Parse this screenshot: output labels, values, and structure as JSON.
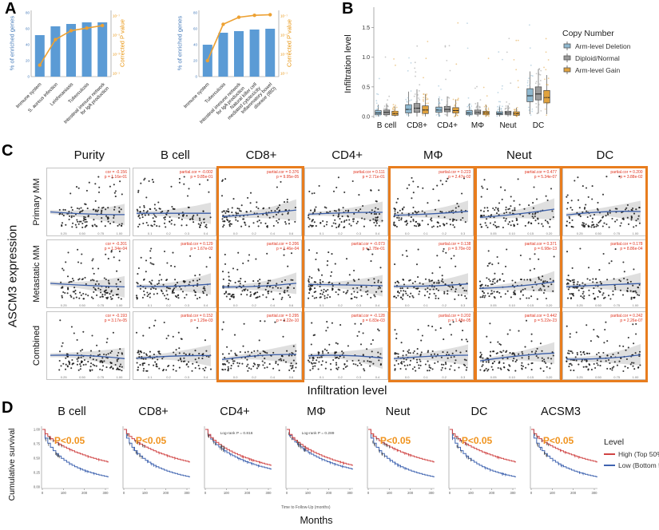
{
  "panel_labels": {
    "A": "A",
    "B": "B",
    "C": "C",
    "D": "D"
  },
  "colors": {
    "bar": "#5b9bd5",
    "line": "#eda133",
    "axis_blue": "#4a7ebb",
    "axis_orange": "#e8940f",
    "scatter_point": "#151515",
    "trend": "#3b5ea8",
    "band": "#bfbfbf",
    "annotation_red": "#e0341f",
    "highlight": "#e87d1e",
    "p_orange": "#f0941f"
  },
  "chart_data": [
    {
      "type": "bar",
      "panel": "A-left",
      "ylabel_left": "% of enriched genes",
      "ylabel_right": "Corrected P value",
      "left_ticks": [
        "0",
        "20",
        "40",
        "60",
        "80"
      ],
      "right_ticks": [
        "10⁻¹",
        "10⁻³",
        "10⁻⁵",
        "10⁻⁷"
      ],
      "categories": [
        "Immune system",
        "S. aureus infection",
        "Leishmaniasis",
        "Tuberculosis",
        "Intestinal immune network\nfor IgA production"
      ],
      "values": [
        52,
        63,
        66,
        68,
        68
      ],
      "line_values": [
        18,
        58,
        72,
        76,
        80
      ],
      "ylim": [
        0,
        80
      ]
    },
    {
      "type": "bar",
      "panel": "A-right",
      "ylabel_left": "% of enriched genes",
      "ylabel_right": "Corrected P value",
      "left_ticks": [
        "0",
        "20",
        "40",
        "60",
        "80"
      ],
      "right_ticks": [
        "10⁻¹",
        "10⁻³",
        "10⁻⁵",
        "10⁻⁷"
      ],
      "categories": [
        "Immune system",
        "Tuberculosis",
        "Intestinal immune network\nfor IgA production",
        "Natural killer cell\nmediated cytotoxicity",
        "Inflammatory bowel\ndisease (IBD)"
      ],
      "values": [
        40,
        55,
        57,
        59,
        60
      ],
      "line_values": [
        25,
        82,
        93,
        96,
        97
      ],
      "ylim": [
        0,
        80
      ]
    },
    {
      "type": "box",
      "panel": "B",
      "ylabel": "Infiltration level",
      "y_ticks": [
        "0.0",
        "0.5",
        "1.0",
        "1.5"
      ],
      "ylim": [
        0,
        1.75
      ],
      "categories": [
        "B cell",
        "CD8+",
        "CD4+",
        "MΦ",
        "Neut",
        "DC"
      ],
      "legend_title": "Copy Number",
      "series": [
        {
          "name": "Arm-level Deletion",
          "color": "#8fb8cf"
        },
        {
          "name": "Diploid/Normal",
          "color": "#9b9b9b"
        },
        {
          "name": "Arm-level Gain",
          "color": "#e0a23e"
        }
      ],
      "boxes": [
        [
          [
            0.03,
            0.06,
            0.1,
            0.0,
            0.2
          ],
          [
            0.03,
            0.07,
            0.11,
            0.0,
            0.22
          ],
          [
            0.02,
            0.05,
            0.09,
            0.0,
            0.17
          ]
        ],
        [
          [
            0.06,
            0.12,
            0.2,
            0.0,
            0.42
          ],
          [
            0.07,
            0.14,
            0.22,
            0.0,
            0.46
          ],
          [
            0.05,
            0.11,
            0.18,
            0.0,
            0.38
          ]
        ],
        [
          [
            0.07,
            0.11,
            0.16,
            0.0,
            0.31
          ],
          [
            0.08,
            0.12,
            0.17,
            0.0,
            0.34
          ],
          [
            0.06,
            0.1,
            0.15,
            0.0,
            0.29
          ]
        ],
        [
          [
            0.03,
            0.06,
            0.1,
            0.0,
            0.22
          ],
          [
            0.04,
            0.07,
            0.11,
            0.0,
            0.24
          ],
          [
            0.03,
            0.06,
            0.09,
            0.0,
            0.2
          ]
        ],
        [
          [
            0.03,
            0.05,
            0.08,
            0.0,
            0.17
          ],
          [
            0.03,
            0.06,
            0.09,
            0.0,
            0.19
          ],
          [
            0.02,
            0.05,
            0.08,
            0.0,
            0.15
          ]
        ],
        [
          [
            0.25,
            0.35,
            0.47,
            0.04,
            0.76
          ],
          [
            0.28,
            0.38,
            0.5,
            0.05,
            0.8
          ],
          [
            0.23,
            0.32,
            0.44,
            0.04,
            0.7
          ]
        ]
      ]
    },
    {
      "type": "scatter",
      "panel": "C",
      "ylabel": "ASCM3 expression",
      "xlabel": "Infiltration level",
      "columns": [
        "Purity",
        "B cell",
        "CD8+",
        "CD4+",
        "MΦ",
        "Neut",
        "DC"
      ],
      "rows": [
        "Primary MM",
        "Metastatic MM",
        "Combined"
      ],
      "highlight_columns": [
        2,
        4,
        5,
        6
      ],
      "x_ticks": [
        [
          "0.25",
          "0.50",
          "0.75",
          "1.00"
        ],
        [
          "0.1",
          "0.2",
          "0.3",
          "0.4"
        ],
        [
          "0.0",
          "0.2",
          "0.4",
          "0.6"
        ],
        [
          "0.1",
          "0.2",
          "0.3",
          "0.4"
        ],
        [
          "0.0",
          "0.1",
          "0.2",
          "0.3"
        ],
        [
          "0.05",
          "0.10",
          "0.15",
          "0.20"
        ],
        [
          "0.25",
          "0.50",
          "0.75",
          "1.00"
        ]
      ],
      "cells": [
        [
          {
            "l1": "cor = -0.156",
            "l2": "p = 1.16e-01"
          },
          {
            "l1": "partial.cor = -0.002",
            "l2": "p = 9.85e-01"
          },
          {
            "l1": "partial.cor = 0.376",
            "l2": "p = 9.95e-05"
          },
          {
            "l1": "partial.cor = 0.111",
            "l2": "p = 2.71e-01"
          },
          {
            "l1": "partial.cor = 0.223",
            "l2": "p = 2.47e-02"
          },
          {
            "l1": "partial.cor = 0.477",
            "l2": "p = 5.34e-07"
          },
          {
            "l1": "partial.cor = 0.200",
            "l2": "p = 3.88e-02"
          }
        ],
        [
          {
            "l1": "cor = -0.201",
            "l2": "p = 1.34e-04"
          },
          {
            "l1": "partial.cor = 0.129",
            "l2": "p = 1.67e-02"
          },
          {
            "l1": "partial.cor = 0.206",
            "l2": "p = 1.46e-04"
          },
          {
            "l1": "partial.cor = -0.073",
            "l2": "p = 1.78e-01"
          },
          {
            "l1": "partial.cor = 0.138",
            "l2": "p = 9.70e-03"
          },
          {
            "l1": "partial.cor = 0.371",
            "l2": "p = 6.98e-13"
          },
          {
            "l1": "partial.cor = 0.178",
            "l2": "p = 8.86e-04"
          }
        ],
        [
          {
            "l1": "cor = -0.193",
            "l2": "p = 3.17e-05"
          },
          {
            "l1": "partial.cor = 0.152",
            "l2": "p = 1.29e-03"
          },
          {
            "l1": "partial.cor = 0.295",
            "l2": "p = 3.22e-10"
          },
          {
            "l1": "partial.cor = -0.128",
            "l2": "p = 6.83e-03"
          },
          {
            "l1": "partial.cor = 0.202",
            "l2": "p = 1.48e-05"
          },
          {
            "l1": "partial.cor = 0.442",
            "l2": "p = 5.22e-23"
          },
          {
            "l1": "partial.cor = 0.242",
            "l2": "p = 2.26e-07"
          }
        ]
      ]
    },
    {
      "type": "line",
      "panel": "D",
      "ylabel": "Cumulative survival",
      "xlabel": "Months",
      "sub_xlabel": "Time to Follow-Up (months)",
      "y_ticks": [
        "1.00",
        "0.75",
        "0.50",
        "0.25",
        "0.00"
      ],
      "x_ticks": [
        "0",
        "100",
        "200",
        "300"
      ],
      "legend": {
        "title": "Level",
        "entries": [
          {
            "name": "High (Top 50%)",
            "color": "#d04343"
          },
          {
            "name": "Low (Bottom 50%)",
            "color": "#3f63b0"
          }
        ]
      },
      "plots": [
        {
          "title": "B cell",
          "sig": true,
          "annotation": "P<0.05"
        },
        {
          "title": "CD8+",
          "sig": true,
          "annotation": "P<0.05"
        },
        {
          "title": "CD4+",
          "sig": false,
          "annotation": "Log-rank P = 0.816"
        },
        {
          "title": "MΦ",
          "sig": false,
          "annotation": "Log-rank P = 0.289"
        },
        {
          "title": "Neut",
          "sig": true,
          "annotation": "P<0.05"
        },
        {
          "title": "DC",
          "sig": true,
          "annotation": "P<0.05"
        },
        {
          "title": "ACSM3",
          "sig": true,
          "annotation": "P<0.05"
        }
      ]
    }
  ]
}
